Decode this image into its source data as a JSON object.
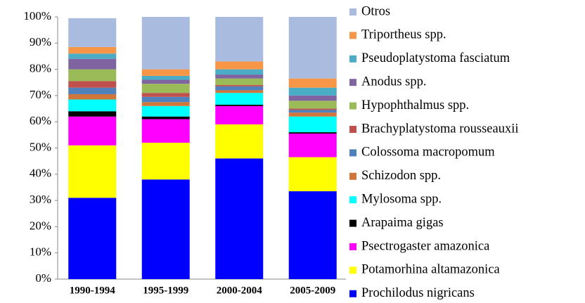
{
  "chart_data": {
    "type": "stacked_bar",
    "categories": [
      "1990-1994",
      "1995-1999",
      "2000-2004",
      "2005-2009"
    ],
    "series": [
      {
        "name": "Prochilodus nigricans",
        "color": "#0000ff",
        "values": [
          31,
          38,
          46,
          33.5
        ]
      },
      {
        "name": "Potamorhina altamazonica",
        "color": "#ffff00",
        "values": [
          20,
          14,
          13,
          13
        ]
      },
      {
        "name": "Psectrogaster amazonica",
        "color": "#ff00ff",
        "values": [
          11,
          9,
          7,
          9
        ]
      },
      {
        "name": "Arapaima gigas",
        "color": "#000000",
        "values": [
          2,
          1,
          0.5,
          0.5
        ]
      },
      {
        "name": "Mylosoma spp.",
        "color": "#00ffff",
        "values": [
          4.5,
          4,
          4.5,
          6
        ]
      },
      {
        "name": "Schizodon spp.",
        "color": "#d0763a",
        "values": [
          2,
          1.5,
          1,
          1.5
        ]
      },
      {
        "name": "Colossoma macropomum",
        "color": "#4f81bd",
        "values": [
          2.5,
          2,
          1.5,
          1
        ]
      },
      {
        "name": "Brachyplatystoma rousseauxii",
        "color": "#c0504d",
        "values": [
          2.5,
          1.5,
          0.5,
          0.5
        ]
      },
      {
        "name": "Hypophthalmus spp.",
        "color": "#9bbb59",
        "values": [
          4.5,
          3.5,
          2.5,
          3
        ]
      },
      {
        "name": "Anodus spp.",
        "color": "#8064a2",
        "values": [
          4,
          1.5,
          1.5,
          2
        ]
      },
      {
        "name": "Pseudoplatystoma fasciatum",
        "color": "#4bacc6",
        "values": [
          2,
          1.5,
          2,
          3
        ]
      },
      {
        "name": "Triportheus spp.",
        "color": "#f79646",
        "values": [
          2.5,
          2.5,
          3,
          3.5
        ]
      },
      {
        "name": "Otros",
        "color": "#a9bce0",
        "values": [
          11,
          20,
          17,
          23.5
        ]
      }
    ],
    "ylim": [
      0,
      100
    ],
    "yticks": [
      {
        "value": 0,
        "label": "0%"
      },
      {
        "value": 10,
        "label": "10%"
      },
      {
        "value": 20,
        "label": "20%"
      },
      {
        "value": 30,
        "label": "30%"
      },
      {
        "value": 40,
        "label": "40%"
      },
      {
        "value": 50,
        "label": "50%"
      },
      {
        "value": 60,
        "label": "60%"
      },
      {
        "value": 70,
        "label": "70%"
      },
      {
        "value": 80,
        "label": "80%"
      },
      {
        "value": 90,
        "label": "90%"
      },
      {
        "value": 100,
        "label": "100%"
      }
    ],
    "legend": "right"
  }
}
